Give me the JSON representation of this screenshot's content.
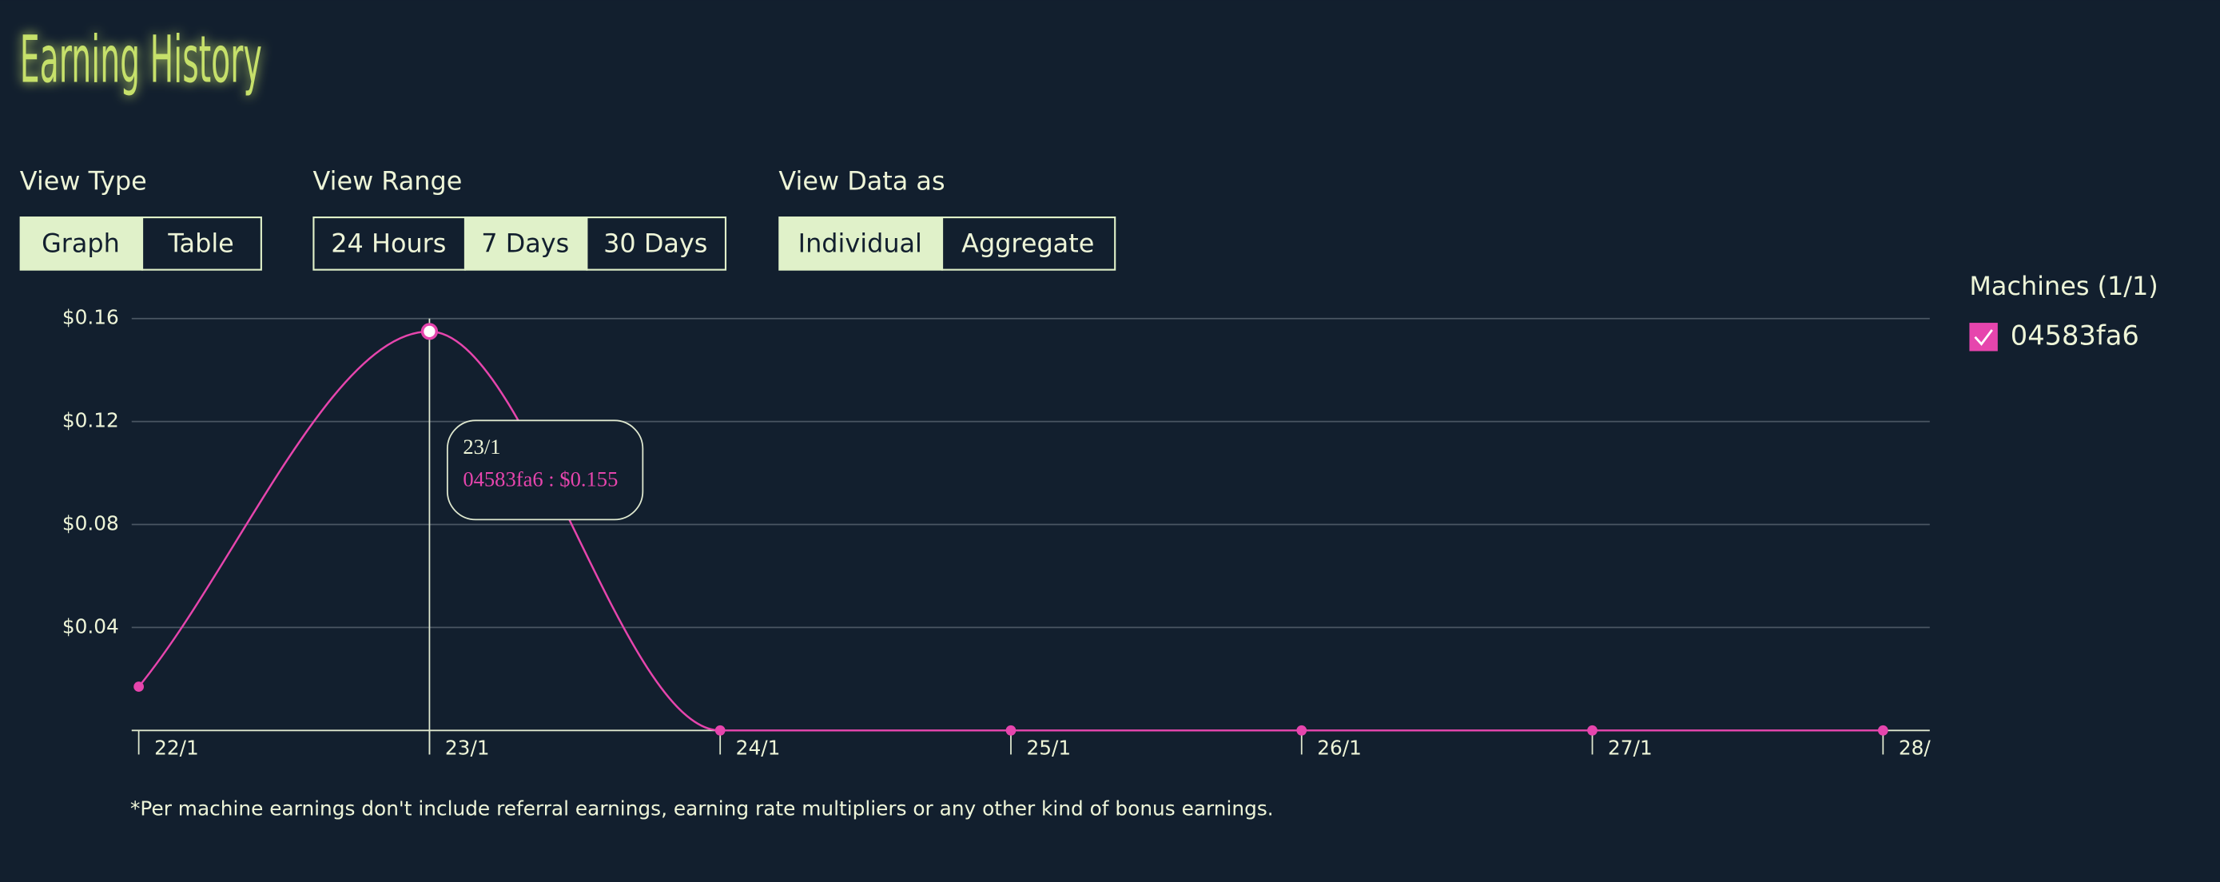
{
  "header": {
    "title": "Earning History"
  },
  "controls": [
    {
      "label": "View Type",
      "options": [
        "Graph",
        "Table"
      ],
      "selected": 0
    },
    {
      "label": "View Range",
      "options": [
        "24 Hours",
        "7 Days",
        "30 Days"
      ],
      "selected": 1
    },
    {
      "label": "View Data as",
      "options": [
        "Individual",
        "Aggregate"
      ],
      "selected": 0
    }
  ],
  "chart_data": {
    "type": "line",
    "categories": [
      "22/1",
      "23/1",
      "24/1",
      "25/1",
      "26/1",
      "27/1",
      "28/"
    ],
    "series": [
      {
        "name": "04583fa6",
        "color": "#e645ad",
        "values": [
          0.017,
          0.155,
          0,
          0,
          0,
          0,
          0
        ]
      }
    ],
    "ylim": [
      0,
      0.16
    ],
    "yticks": [
      {
        "value": 0.04,
        "label": "$0.04"
      },
      {
        "value": 0.08,
        "label": "$0.08"
      },
      {
        "value": 0.12,
        "label": "$0.12"
      },
      {
        "value": 0.16,
        "label": "$0.16"
      }
    ],
    "grid": true,
    "legend_title": "Machines (1/1)",
    "tooltip": {
      "title": "23/1",
      "text": "04583fa6 : $0.155"
    }
  },
  "footnote": "*Per machine earnings don't include referral earnings, earning rate multipliers or any other kind of bonus earnings."
}
